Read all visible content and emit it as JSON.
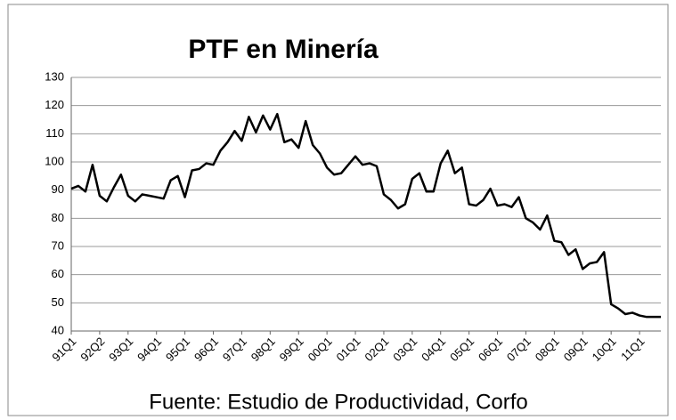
{
  "chart_data": {
    "type": "line",
    "title": "PTF en Minería",
    "source": "Fuente: Estudio de Productividad, Corfo",
    "categories": [
      "91Q1",
      null,
      null,
      null,
      "92Q2",
      null,
      null,
      null,
      "93Q1",
      null,
      null,
      null,
      "94Q1",
      null,
      null,
      null,
      "95Q1",
      null,
      null,
      null,
      "96Q1",
      null,
      null,
      null,
      "97Q1",
      null,
      null,
      null,
      "98Q1",
      null,
      null,
      null,
      "99Q1",
      null,
      null,
      null,
      "00Q1",
      null,
      null,
      null,
      "01Q1",
      null,
      null,
      null,
      "02Q1",
      null,
      null,
      null,
      "03Q1",
      null,
      null,
      null,
      "04Q1",
      null,
      null,
      null,
      "05Q1",
      null,
      null,
      null,
      "06Q1",
      null,
      null,
      null,
      "07Q1",
      null,
      null,
      null,
      "08Q1",
      null,
      null,
      null,
      "09Q1",
      null,
      null,
      null,
      "10Q1",
      null,
      null,
      null,
      "11Q1",
      null,
      null,
      null
    ],
    "series": [
      {
        "name": "PTF",
        "color": "#000000",
        "values": [
          90.5,
          91.5,
          89.5,
          99,
          88,
          86,
          91,
          95.5,
          88,
          86,
          88.5,
          88,
          87.5,
          87,
          93.5,
          95,
          87.5,
          97,
          97.5,
          99.5,
          99,
          104,
          107,
          111,
          107.5,
          116,
          110.5,
          116.5,
          111.5,
          117,
          107,
          108,
          105,
          114.5,
          106,
          103,
          98,
          95.5,
          96,
          99,
          102,
          99,
          99.5,
          98.5,
          88.5,
          86.5,
          83.5,
          85,
          94,
          96,
          89.5,
          89.5,
          99.5,
          104,
          96,
          98,
          85,
          84.5,
          86.5,
          90.5,
          84.5,
          85,
          84,
          87.5,
          80,
          78.5,
          76,
          81,
          72,
          71.5,
          67,
          69,
          62,
          64,
          64.5,
          68,
          49.5,
          48,
          46,
          46.5,
          45.5,
          45,
          45,
          45
        ]
      }
    ],
    "ylim": [
      40,
      130
    ],
    "yticks": [
      40,
      50,
      60,
      70,
      80,
      90,
      100,
      110,
      120,
      130
    ],
    "grid": true
  }
}
